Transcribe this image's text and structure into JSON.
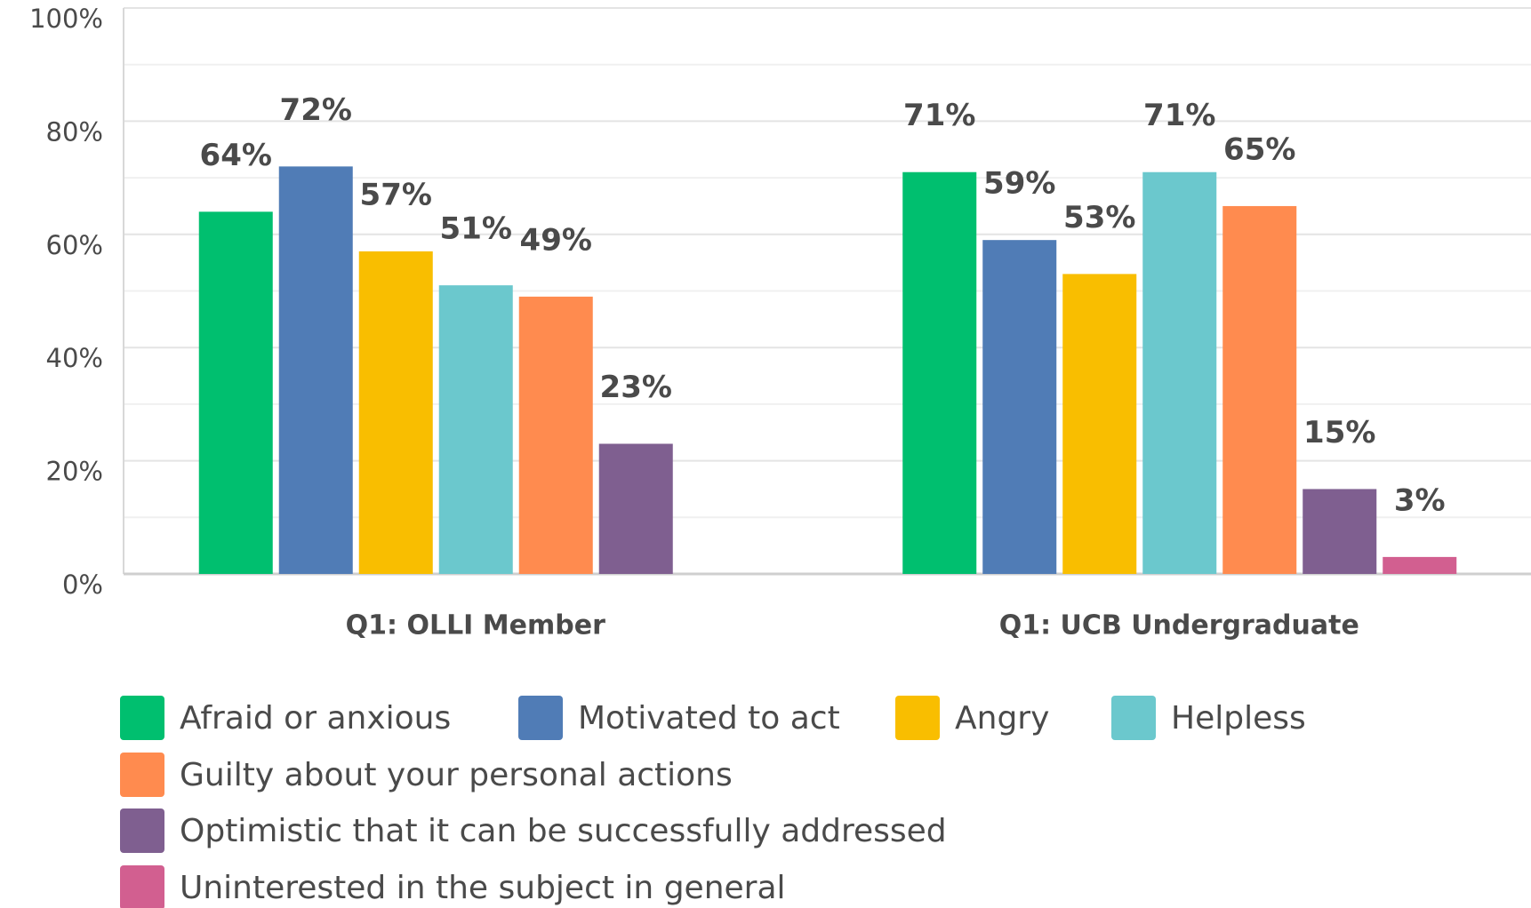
{
  "chart_data": {
    "type": "bar",
    "categories": [
      "Q1: OLLI Member",
      "Q1: UCB Undergraduate"
    ],
    "series": [
      {
        "name": "Afraid or anxious",
        "color": "#00bf6f",
        "values": [
          64,
          71
        ],
        "value_labels": [
          "64%",
          "71%"
        ]
      },
      {
        "name": "Motivated to act",
        "color": "#507cb6",
        "values": [
          72,
          59
        ],
        "value_labels": [
          "72%",
          "59%"
        ]
      },
      {
        "name": "Angry",
        "color": "#f9be00",
        "values": [
          57,
          53
        ],
        "value_labels": [
          "57%",
          "53%"
        ]
      },
      {
        "name": "Helpless",
        "color": "#6bc8cd",
        "values": [
          51,
          71
        ],
        "value_labels": [
          "51%",
          "71%"
        ]
      },
      {
        "name": "Guilty about your personal actions",
        "color": "#ff8b4f",
        "values": [
          49,
          65
        ],
        "value_labels": [
          "49%",
          "65%"
        ]
      },
      {
        "name": "Optimistic that it can be successfully addressed",
        "color": "#7f5f90",
        "values": [
          23,
          15
        ],
        "value_labels": [
          "23%",
          "15%"
        ]
      },
      {
        "name": "Uninterested in the subject in general",
        "color": "#d25f90",
        "values": [
          null,
          3
        ],
        "value_labels": [
          null,
          "3%"
        ]
      }
    ],
    "ylim": [
      0,
      100
    ],
    "yticks": [
      {
        "value": 0,
        "label": "0%"
      },
      {
        "value": 20,
        "label": "20%"
      },
      {
        "value": 40,
        "label": "40%"
      },
      {
        "value": 60,
        "label": "60%"
      },
      {
        "value": 80,
        "label": "80%"
      },
      {
        "value": 100,
        "label": "100%"
      }
    ],
    "yminorticks": [
      10,
      30,
      50,
      70,
      90
    ],
    "grid": true,
    "legend": "bottom"
  }
}
